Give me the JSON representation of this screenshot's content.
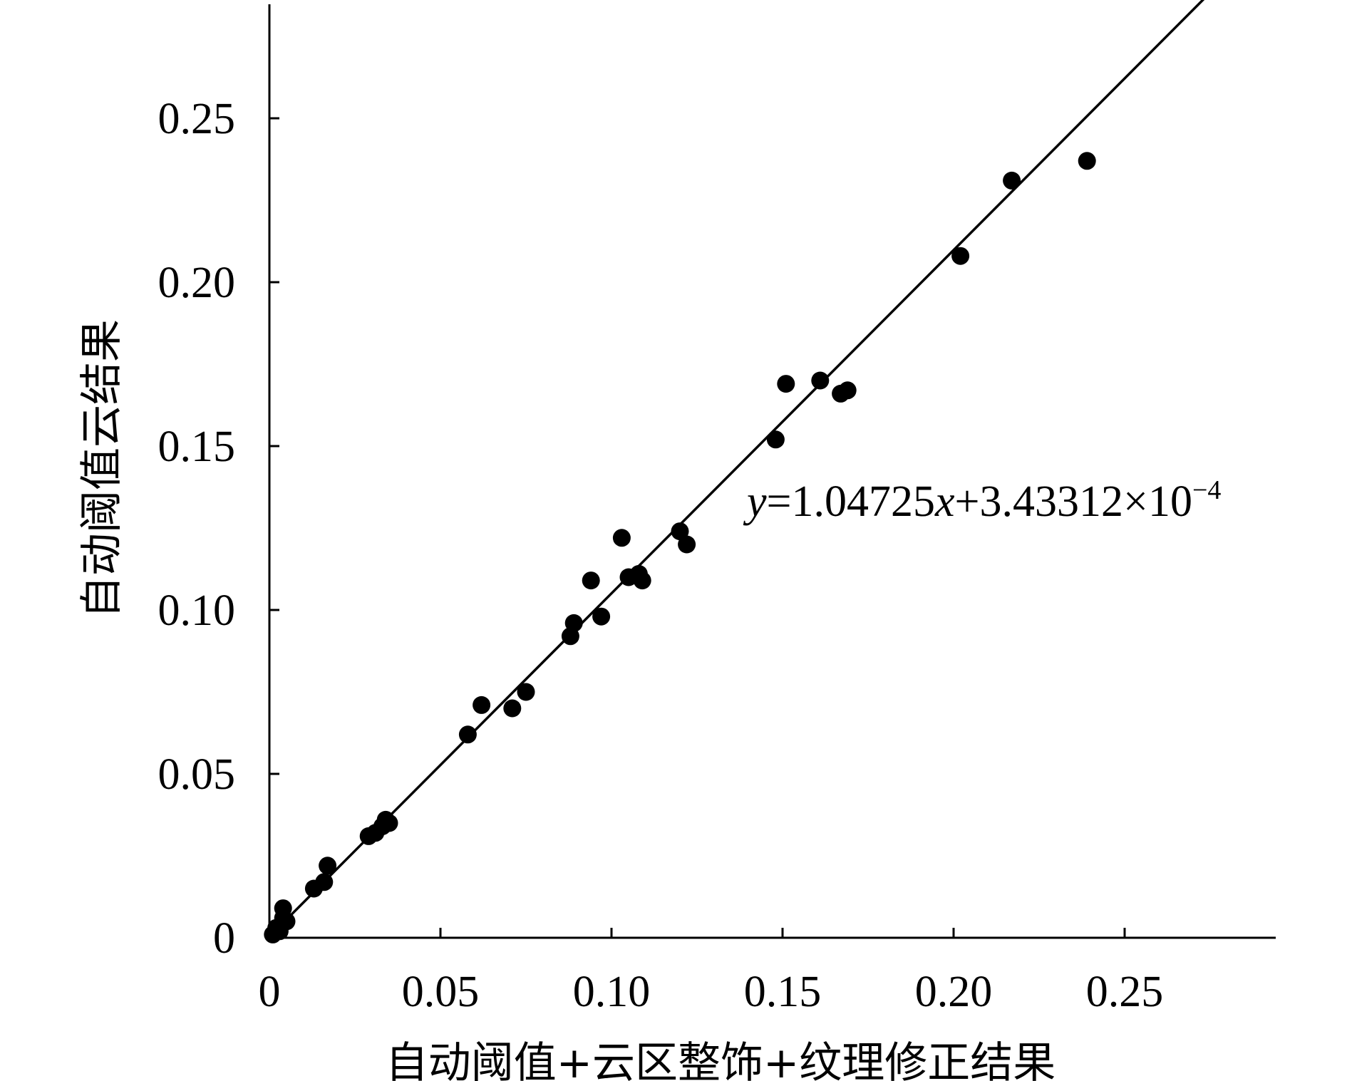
{
  "chart_data": {
    "type": "scatter",
    "xlabel": "自动阈值+云区整饰+纹理修正结果",
    "ylabel": "自动阈值云结果",
    "xlim": [
      0,
      0.295
    ],
    "ylim": [
      0,
      0.285
    ],
    "x_ticks": [
      0,
      0.05,
      0.1,
      0.15,
      0.2,
      0.25
    ],
    "y_ticks": [
      0,
      0.05,
      0.1,
      0.15,
      0.2,
      0.25
    ],
    "x_tick_labels": [
      "0",
      "0.05",
      "0.10",
      "0.15",
      "0.20",
      "0.25"
    ],
    "y_tick_labels": [
      "0",
      "0.05",
      "0.10",
      "0.15",
      "0.20",
      "0.25"
    ],
    "grid": false,
    "marker_color": "#000000",
    "line_color": "#000000",
    "fit_line": {
      "slope": 1.04725,
      "intercept": 0.000343312
    },
    "equation": {
      "y_var": "y",
      "eq_and_coef": "=1.04725",
      "x_var": "x",
      "rest": "+3.43312×10",
      "exponent": "−4"
    },
    "points": [
      {
        "x": 0.001,
        "y": 0.001
      },
      {
        "x": 0.002,
        "y": 0.003
      },
      {
        "x": 0.003,
        "y": 0.002
      },
      {
        "x": 0.004,
        "y": 0.006
      },
      {
        "x": 0.004,
        "y": 0.009
      },
      {
        "x": 0.005,
        "y": 0.005
      },
      {
        "x": 0.013,
        "y": 0.015
      },
      {
        "x": 0.016,
        "y": 0.017
      },
      {
        "x": 0.017,
        "y": 0.022
      },
      {
        "x": 0.029,
        "y": 0.031
      },
      {
        "x": 0.031,
        "y": 0.032
      },
      {
        "x": 0.033,
        "y": 0.034
      },
      {
        "x": 0.034,
        "y": 0.036
      },
      {
        "x": 0.035,
        "y": 0.035
      },
      {
        "x": 0.058,
        "y": 0.062
      },
      {
        "x": 0.062,
        "y": 0.071
      },
      {
        "x": 0.071,
        "y": 0.07
      },
      {
        "x": 0.075,
        "y": 0.075
      },
      {
        "x": 0.088,
        "y": 0.092
      },
      {
        "x": 0.089,
        "y": 0.096
      },
      {
        "x": 0.094,
        "y": 0.109
      },
      {
        "x": 0.097,
        "y": 0.098
      },
      {
        "x": 0.103,
        "y": 0.122
      },
      {
        "x": 0.105,
        "y": 0.11
      },
      {
        "x": 0.108,
        "y": 0.111
      },
      {
        "x": 0.109,
        "y": 0.109
      },
      {
        "x": 0.12,
        "y": 0.124
      },
      {
        "x": 0.122,
        "y": 0.12
      },
      {
        "x": 0.148,
        "y": 0.152
      },
      {
        "x": 0.151,
        "y": 0.169
      },
      {
        "x": 0.161,
        "y": 0.17
      },
      {
        "x": 0.167,
        "y": 0.166
      },
      {
        "x": 0.169,
        "y": 0.167
      },
      {
        "x": 0.202,
        "y": 0.208
      },
      {
        "x": 0.217,
        "y": 0.231
      },
      {
        "x": 0.239,
        "y": 0.237
      }
    ]
  }
}
